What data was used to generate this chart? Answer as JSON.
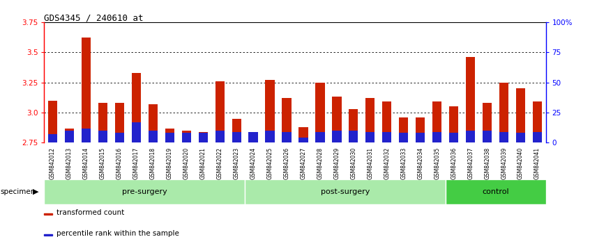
{
  "title": "GDS4345 / 240610_at",
  "samples": [
    "GSM842012",
    "GSM842013",
    "GSM842014",
    "GSM842015",
    "GSM842016",
    "GSM842017",
    "GSM842018",
    "GSM842019",
    "GSM842020",
    "GSM842021",
    "GSM842022",
    "GSM842023",
    "GSM842024",
    "GSM842025",
    "GSM842026",
    "GSM842027",
    "GSM842028",
    "GSM842029",
    "GSM842030",
    "GSM842031",
    "GSM842032",
    "GSM842033",
    "GSM842034",
    "GSM842035",
    "GSM842036",
    "GSM842037",
    "GSM842038",
    "GSM842039",
    "GSM842040",
    "GSM842041"
  ],
  "red_values": [
    3.1,
    2.87,
    3.62,
    3.08,
    3.08,
    3.33,
    3.07,
    2.87,
    2.85,
    2.84,
    3.26,
    2.95,
    2.83,
    3.27,
    3.12,
    2.88,
    3.25,
    3.13,
    3.03,
    3.12,
    3.09,
    2.96,
    2.96,
    3.09,
    3.05,
    3.46,
    3.08,
    3.25,
    3.2,
    3.09
  ],
  "blue_percentiles": [
    7,
    10,
    12,
    10,
    8,
    17,
    10,
    8,
    8,
    8,
    10,
    9,
    9,
    10,
    9,
    4,
    9,
    10,
    10,
    9,
    9,
    8,
    8,
    9,
    8,
    10,
    10,
    9,
    8,
    9
  ],
  "ymin": 2.75,
  "ymax": 3.75,
  "yticks_left": [
    2.75,
    3.0,
    3.25,
    3.5,
    3.75
  ],
  "yticks_right": [
    0,
    25,
    50,
    75,
    100
  ],
  "ytick_labels_right": [
    "0",
    "25",
    "50",
    "75",
    "100%"
  ],
  "group_defs": [
    {
      "start": 0,
      "end": 12,
      "label": "pre-surgery",
      "color": "#aaeaaa"
    },
    {
      "start": 12,
      "end": 24,
      "label": "post-surgery",
      "color": "#aaeaaa"
    },
    {
      "start": 24,
      "end": 30,
      "label": "control",
      "color": "#44cc44"
    }
  ],
  "bar_color_red": "#cc2200",
  "bar_color_blue": "#2222cc",
  "bar_width": 0.55,
  "legend_items": [
    {
      "label": "transformed count",
      "color": "#cc2200"
    },
    {
      "label": "percentile rank within the sample",
      "color": "#2222cc"
    }
  ]
}
